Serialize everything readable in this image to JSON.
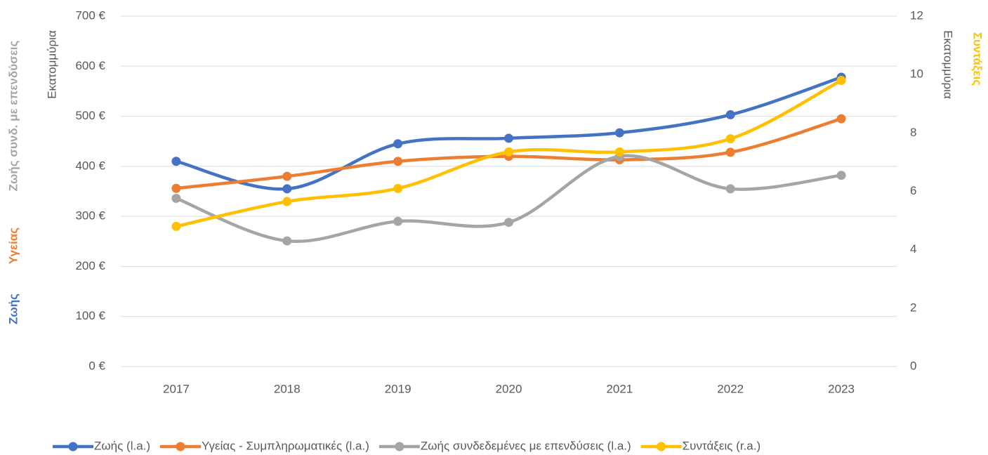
{
  "chart_data": {
    "type": "line",
    "categories": [
      "2017",
      "2018",
      "2019",
      "2020",
      "2021",
      "2022",
      "2023"
    ],
    "series": [
      {
        "name": "Ζωής (l.a.)",
        "color": "#4472c4",
        "values": [
          410,
          355,
          445,
          456,
          467,
          503,
          578
        ]
      },
      {
        "name": "Υγείας - Συμπληρωματικές (l.a.)",
        "color": "#ed7d31",
        "values": [
          356,
          380,
          410,
          420,
          413,
          428,
          495
        ]
      },
      {
        "name": "Ζωής συνδεδεμένες με επενδύσεις (l.a.)",
        "color": "#a5a5a5",
        "values": [
          336,
          251,
          290,
          288,
          420,
          355,
          382
        ]
      },
      {
        "name": "Συντάξεις (r.a.)",
        "color": "#ffc000",
        "axis": "y2",
        "values": [
          4.8,
          5.65,
          6.1,
          7.35,
          7.35,
          7.8,
          9.8
        ]
      }
    ],
    "ylim": [
      0,
      700
    ],
    "yticks": [
      {
        "value": 0,
        "label": "0 €"
      },
      {
        "value": 100,
        "label": "100 €"
      },
      {
        "value": 200,
        "label": "200 €"
      },
      {
        "value": 300,
        "label": "300 €"
      },
      {
        "value": 400,
        "label": "400 €"
      },
      {
        "value": 500,
        "label": "500 €"
      },
      {
        "value": 600,
        "label": "600 €"
      },
      {
        "value": 700,
        "label": "700 €"
      }
    ],
    "y2lim": [
      0,
      12
    ],
    "y2ticks": [
      0,
      2,
      4,
      6,
      8,
      10,
      12
    ],
    "ylabel": "Εκατομμύρια",
    "ylabel_groups": [
      "Ζωής",
      "Υγείας",
      "Ζωής συνδ. με επενδύσεις"
    ],
    "y2label": "Εκατομμύρια",
    "y2label_group": "Συντάξεις",
    "grid": true,
    "smooth": true,
    "legend": "bottom"
  }
}
